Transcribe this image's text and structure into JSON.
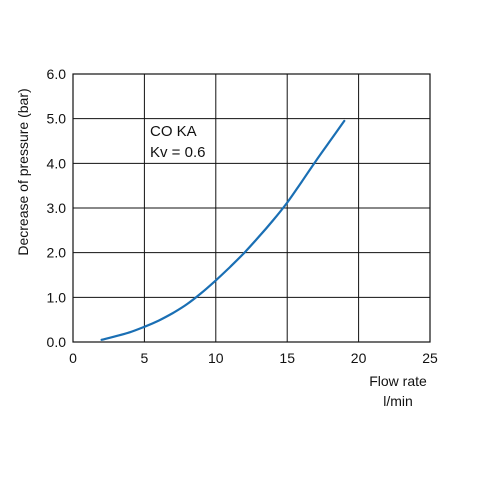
{
  "chart_data": {
    "type": "line",
    "title": "",
    "xlabel": "Flow rate",
    "xunit": "l/min",
    "ylabel": "Decrease of pressure (bar)",
    "xlim": [
      0,
      25
    ],
    "ylim": [
      0,
      6
    ],
    "x_ticks": [
      "0",
      "5",
      "10",
      "15",
      "20",
      "25"
    ],
    "y_ticks": [
      "0.0",
      "1.0",
      "2.0",
      "3.0",
      "4.0",
      "5.0",
      "6.0"
    ],
    "x_tick_values": [
      0,
      5,
      10,
      15,
      20,
      25
    ],
    "y_tick_values": [
      0,
      1,
      2,
      3,
      4,
      5,
      6
    ],
    "grid": true,
    "annotations": [
      "CO KA",
      "Kv = 0.6"
    ],
    "series": [
      {
        "color": "#1a6fb4",
        "x": [
          2.0,
          3.0,
          4.0,
          5.0,
          6.0,
          7.0,
          8.0,
          9.0,
          10.0,
          11.0,
          12.0,
          13.0,
          14.0,
          15.0,
          16.0,
          17.0,
          18.0,
          19.0
        ],
        "y": [
          0.05,
          0.13,
          0.22,
          0.34,
          0.48,
          0.65,
          0.85,
          1.1,
          1.38,
          1.68,
          2.0,
          2.35,
          2.72,
          3.12,
          3.58,
          4.05,
          4.5,
          4.95
        ]
      }
    ]
  }
}
